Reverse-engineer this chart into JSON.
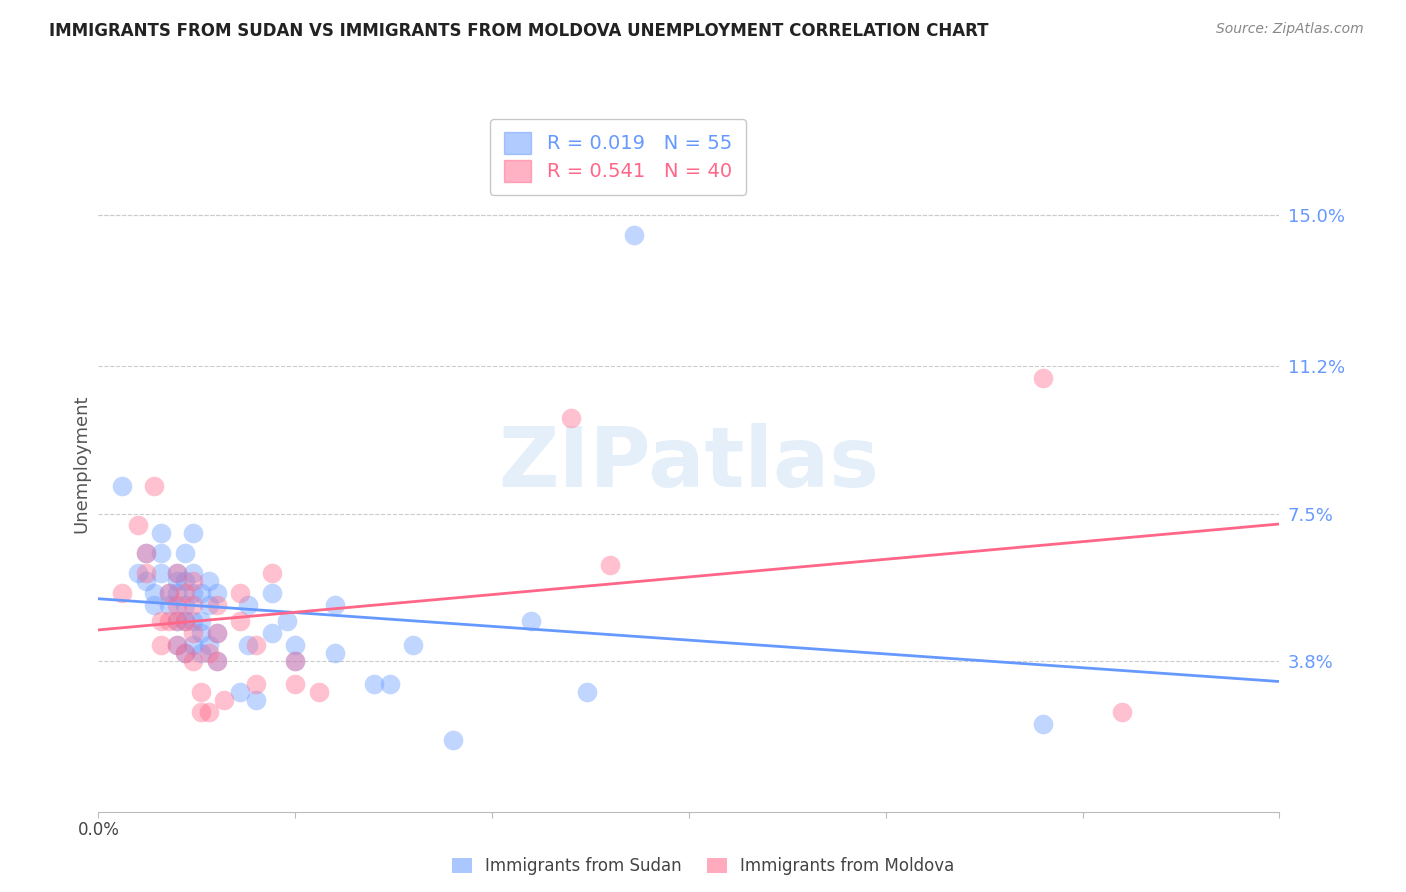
{
  "title": "IMMIGRANTS FROM SUDAN VS IMMIGRANTS FROM MOLDOVA UNEMPLOYMENT CORRELATION CHART",
  "source": "Source: ZipAtlas.com",
  "ylabel": "Unemployment",
  "ytick_labels": [
    "15.0%",
    "11.2%",
    "7.5%",
    "3.8%"
  ],
  "ytick_values": [
    0.15,
    0.112,
    0.075,
    0.038
  ],
  "xmin": 0.0,
  "xmax": 0.15,
  "ymin": 0.0,
  "ymax": 0.175,
  "sudan_color": "#6699ff",
  "moldova_color": "#ff6688",
  "sudan_R": "0.019",
  "sudan_N": "55",
  "moldova_R": "0.541",
  "moldova_N": "40",
  "watermark": "ZIPatlas",
  "legend_label_sudan": "Immigrants from Sudan",
  "legend_label_moldova": "Immigrants from Moldova",
  "sudan_points": [
    [
      0.003,
      0.082
    ],
    [
      0.005,
      0.06
    ],
    [
      0.006,
      0.065
    ],
    [
      0.006,
      0.058
    ],
    [
      0.007,
      0.055
    ],
    [
      0.007,
      0.052
    ],
    [
      0.008,
      0.07
    ],
    [
      0.008,
      0.065
    ],
    [
      0.008,
      0.06
    ],
    [
      0.009,
      0.055
    ],
    [
      0.009,
      0.052
    ],
    [
      0.01,
      0.06
    ],
    [
      0.01,
      0.058
    ],
    [
      0.01,
      0.055
    ],
    [
      0.01,
      0.048
    ],
    [
      0.01,
      0.042
    ],
    [
      0.011,
      0.065
    ],
    [
      0.011,
      0.058
    ],
    [
      0.011,
      0.052
    ],
    [
      0.011,
      0.048
    ],
    [
      0.011,
      0.04
    ],
    [
      0.012,
      0.07
    ],
    [
      0.012,
      0.06
    ],
    [
      0.012,
      0.055
    ],
    [
      0.012,
      0.048
    ],
    [
      0.012,
      0.042
    ],
    [
      0.013,
      0.055
    ],
    [
      0.013,
      0.048
    ],
    [
      0.013,
      0.045
    ],
    [
      0.013,
      0.04
    ],
    [
      0.014,
      0.058
    ],
    [
      0.014,
      0.052
    ],
    [
      0.014,
      0.042
    ],
    [
      0.015,
      0.055
    ],
    [
      0.015,
      0.045
    ],
    [
      0.015,
      0.038
    ],
    [
      0.018,
      0.03
    ],
    [
      0.019,
      0.052
    ],
    [
      0.019,
      0.042
    ],
    [
      0.02,
      0.028
    ],
    [
      0.022,
      0.055
    ],
    [
      0.022,
      0.045
    ],
    [
      0.024,
      0.048
    ],
    [
      0.025,
      0.042
    ],
    [
      0.025,
      0.038
    ],
    [
      0.03,
      0.052
    ],
    [
      0.03,
      0.04
    ],
    [
      0.035,
      0.032
    ],
    [
      0.037,
      0.032
    ],
    [
      0.04,
      0.042
    ],
    [
      0.045,
      0.018
    ],
    [
      0.055,
      0.048
    ],
    [
      0.062,
      0.03
    ],
    [
      0.12,
      0.022
    ],
    [
      0.068,
      0.145
    ]
  ],
  "moldova_points": [
    [
      0.003,
      0.055
    ],
    [
      0.005,
      0.072
    ],
    [
      0.006,
      0.065
    ],
    [
      0.006,
      0.06
    ],
    [
      0.007,
      0.082
    ],
    [
      0.008,
      0.048
    ],
    [
      0.008,
      0.042
    ],
    [
      0.009,
      0.055
    ],
    [
      0.009,
      0.048
    ],
    [
      0.01,
      0.06
    ],
    [
      0.01,
      0.052
    ],
    [
      0.01,
      0.048
    ],
    [
      0.01,
      0.042
    ],
    [
      0.011,
      0.055
    ],
    [
      0.011,
      0.048
    ],
    [
      0.011,
      0.04
    ],
    [
      0.012,
      0.058
    ],
    [
      0.012,
      0.052
    ],
    [
      0.012,
      0.045
    ],
    [
      0.012,
      0.038
    ],
    [
      0.013,
      0.03
    ],
    [
      0.013,
      0.025
    ],
    [
      0.014,
      0.04
    ],
    [
      0.014,
      0.025
    ],
    [
      0.015,
      0.052
    ],
    [
      0.015,
      0.045
    ],
    [
      0.015,
      0.038
    ],
    [
      0.016,
      0.028
    ],
    [
      0.018,
      0.055
    ],
    [
      0.018,
      0.048
    ],
    [
      0.02,
      0.042
    ],
    [
      0.02,
      0.032
    ],
    [
      0.022,
      0.06
    ],
    [
      0.025,
      0.038
    ],
    [
      0.025,
      0.032
    ],
    [
      0.028,
      0.03
    ],
    [
      0.06,
      0.099
    ],
    [
      0.065,
      0.062
    ],
    [
      0.12,
      0.109
    ],
    [
      0.13,
      0.025
    ]
  ]
}
